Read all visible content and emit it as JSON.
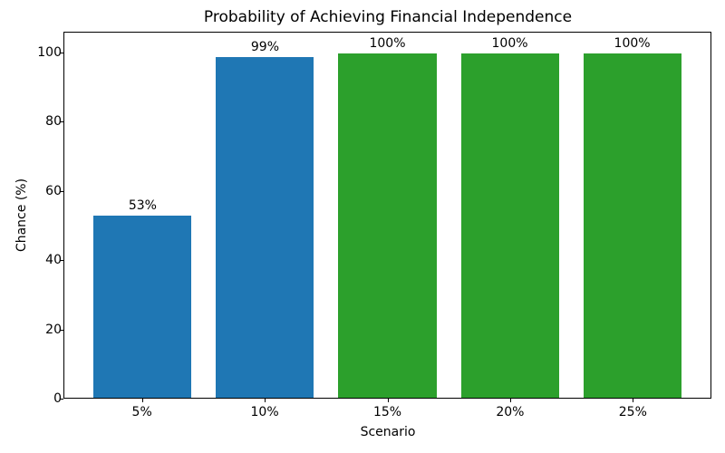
{
  "chart_data": {
    "type": "bar",
    "title": "Probability of Achieving Financial Independence",
    "xlabel": "Scenario",
    "ylabel": "Chance (%)",
    "categories": [
      "5%",
      "10%",
      "15%",
      "20%",
      "25%"
    ],
    "values": [
      53,
      99,
      100,
      100,
      100
    ],
    "bar_labels": [
      "53%",
      "99%",
      "100%",
      "100%",
      "100%"
    ],
    "bar_colors": [
      "#1f77b4",
      "#1f77b4",
      "#2ca02c",
      "#2ca02c",
      "#2ca02c"
    ],
    "yticks": [
      0,
      20,
      40,
      60,
      80,
      100
    ],
    "ylim": [
      0,
      106
    ],
    "xlim_units": 5.28,
    "first_bar_center_units": 0.64,
    "bar_width_units": 0.8,
    "grid": false,
    "legend": null
  }
}
